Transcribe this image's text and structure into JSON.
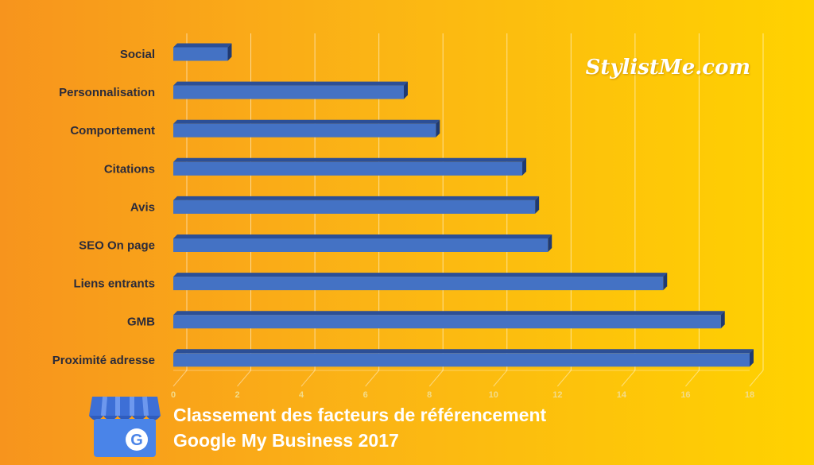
{
  "brand": "StylistMe.com",
  "caption": {
    "line1": "Classement des facteurs de référencement",
    "line2": "Google My Business 2017"
  },
  "colors": {
    "bar": "#4472c4",
    "bar_top": "#2c4f96",
    "bar_side": "#1f3a73",
    "gridline": "#ffffff",
    "logo_blue": "#4a84e8"
  },
  "icons": [
    "google-my-business-icon"
  ],
  "chart_data": {
    "type": "bar",
    "orientation": "horizontal",
    "categories": [
      "Social",
      "Personnalisation",
      "Comportement",
      "Citations",
      "Avis",
      "SEO On page",
      "Liens entrants",
      "GMB",
      "Proximité adresse"
    ],
    "values": [
      1.7,
      7.2,
      8.2,
      10.9,
      11.3,
      11.7,
      15.3,
      17.1,
      18.0
    ],
    "xlim": [
      0,
      18
    ],
    "xticks": [
      "0",
      "2",
      "4",
      "6",
      "8",
      "10",
      "12",
      "14",
      "16",
      "18"
    ],
    "grid": true,
    "legend": "none"
  }
}
